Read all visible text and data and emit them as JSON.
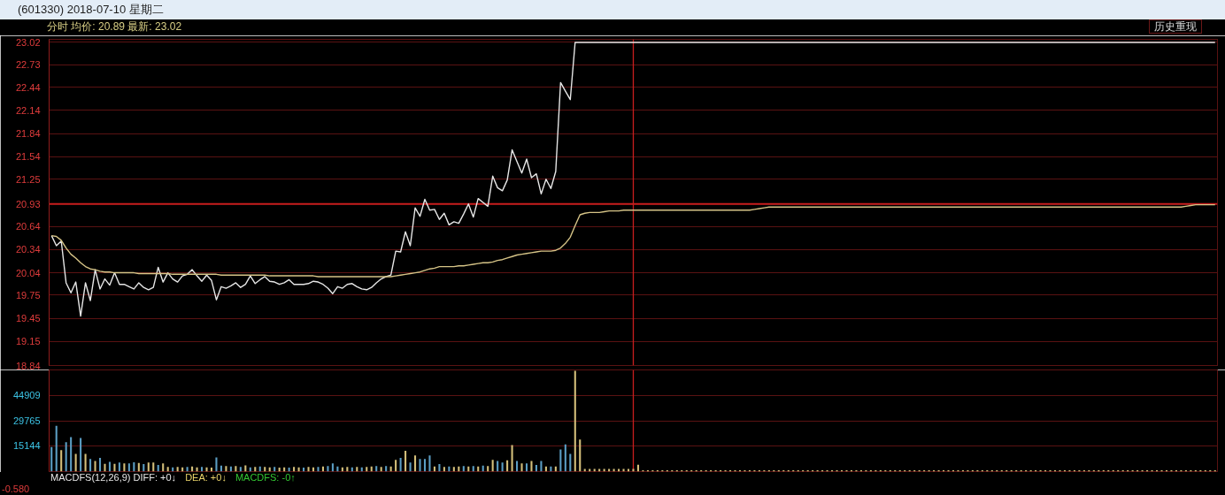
{
  "chart_data": [
    {
      "type": "line",
      "title": "(601330) 2018-07-10 星期二",
      "subtitle": "分时 均价: 20.89 最新: 23.02",
      "annotations": [
        "历史重现"
      ],
      "categories": [
        null,
        null,
        null,
        null,
        null,
        null,
        null,
        null,
        null,
        null,
        null,
        null,
        null,
        null,
        null,
        null,
        null,
        null,
        null,
        null,
        null,
        null,
        null,
        null,
        null,
        null,
        null,
        null,
        null,
        null,
        null,
        null,
        null,
        null,
        null,
        null,
        null,
        null,
        null,
        null,
        null,
        null,
        null,
        null,
        null,
        null,
        null,
        null,
        null,
        null,
        null,
        null,
        null,
        null,
        null,
        null,
        null,
        null,
        null,
        null,
        null,
        null,
        null,
        null,
        null,
        null,
        null,
        null,
        null,
        null,
        null,
        null,
        null,
        null,
        null,
        null,
        null,
        null,
        null,
        null,
        null,
        null,
        null,
        null,
        null,
        null,
        null,
        null,
        null,
        null,
        null,
        null,
        null,
        null,
        null,
        null,
        null,
        null,
        null,
        null,
        null,
        null,
        null,
        null,
        null,
        null,
        null,
        null,
        null,
        null,
        null,
        null,
        null,
        null,
        null,
        null,
        null,
        null,
        null,
        null,
        null,
        null,
        null,
        null,
        null,
        null,
        null,
        null,
        null,
        null,
        null,
        null,
        null,
        null,
        null,
        null,
        null,
        null,
        null,
        null,
        null,
        null,
        null,
        null,
        null,
        null,
        null,
        null,
        null,
        null,
        null,
        null,
        null,
        null,
        null,
        null,
        null,
        null,
        null,
        null,
        null,
        null,
        null,
        null,
        null,
        null,
        null,
        null,
        null,
        null,
        null,
        null,
        null,
        null,
        null,
        null,
        null,
        null,
        null,
        null,
        null,
        null,
        null,
        null,
        null,
        null,
        null,
        null,
        null,
        null,
        null,
        null,
        null,
        null,
        null,
        null,
        null,
        null,
        null,
        null,
        null,
        null,
        null,
        null,
        null,
        null,
        null,
        null,
        null,
        null,
        null,
        null,
        null,
        null,
        null,
        null,
        null,
        null,
        null,
        null,
        null,
        null,
        null,
        null,
        null,
        null,
        null,
        null,
        null,
        null,
        null,
        null,
        null,
        null,
        null,
        null,
        null,
        null,
        null,
        null,
        null
      ],
      "series": [
        {
          "color": "#e6e6e6",
          "values": [
            20.52,
            20.39,
            20.45,
            19.91,
            19.78,
            19.92,
            19.48,
            19.91,
            19.68,
            20.08,
            19.83,
            19.96,
            19.88,
            20.04,
            19.89,
            19.89,
            19.86,
            19.83,
            19.91,
            19.85,
            19.82,
            19.85,
            20.11,
            19.92,
            20.04,
            19.96,
            19.92,
            20.0,
            20.02,
            20.08,
            20.0,
            19.93,
            20.01,
            19.94,
            19.69,
            19.86,
            19.84,
            19.87,
            19.91,
            19.85,
            19.89,
            20.0,
            19.9,
            19.95,
            19.99,
            19.93,
            19.92,
            19.89,
            19.91,
            19.95,
            19.89,
            19.89,
            19.89,
            19.9,
            19.93,
            19.92,
            19.89,
            19.84,
            19.77,
            19.86,
            19.84,
            19.89,
            19.9,
            19.86,
            19.83,
            19.82,
            19.85,
            19.91,
            19.96,
            19.99,
            20.01,
            20.32,
            20.31,
            20.57,
            20.39,
            20.88,
            20.77,
            20.99,
            20.85,
            20.86,
            20.73,
            20.81,
            20.66,
            20.7,
            20.68,
            20.8,
            20.93,
            20.76,
            21.0,
            20.95,
            20.9,
            21.29,
            21.14,
            21.1,
            21.24,
            21.63,
            21.48,
            21.33,
            21.51,
            21.27,
            21.32,
            21.06,
            21.25,
            21.13,
            21.35,
            22.5,
            22.39,
            22.28,
            23.02,
            23.02,
            23.02,
            23.02,
            23.02,
            23.02,
            23.02,
            23.02,
            23.02,
            23.02,
            23.02,
            23.02,
            23.02,
            23.02,
            23.02,
            23.02,
            23.02,
            23.02,
            23.02,
            23.02,
            23.02,
            23.02,
            23.02,
            23.02,
            23.02,
            23.02,
            23.02,
            23.02,
            23.02,
            23.02,
            23.02,
            23.02,
            23.02,
            23.02,
            23.02,
            23.02,
            23.02,
            23.02,
            23.02,
            23.02,
            23.02,
            23.02,
            23.02,
            23.02,
            23.02,
            23.02,
            23.02,
            23.02,
            23.02,
            23.02,
            23.02,
            23.02,
            23.02,
            23.02,
            23.02,
            23.02,
            23.02,
            23.02,
            23.02,
            23.02,
            23.02,
            23.02,
            23.02,
            23.02,
            23.02,
            23.02,
            23.02,
            23.02,
            23.02,
            23.02,
            23.02,
            23.02,
            23.02,
            23.02,
            23.02,
            23.02,
            23.02,
            23.02,
            23.02,
            23.02,
            23.02,
            23.02,
            23.02,
            23.02,
            23.02,
            23.02,
            23.02,
            23.02,
            23.02,
            23.02,
            23.02,
            23.02,
            23.02,
            23.02,
            23.02,
            23.02,
            23.02,
            23.02,
            23.02,
            23.02,
            23.02,
            23.02,
            23.02,
            23.02,
            23.02,
            23.02,
            23.02,
            23.02,
            23.02,
            23.02,
            23.02,
            23.02,
            23.02,
            23.02,
            23.02,
            23.02,
            23.02,
            23.02,
            23.02,
            23.02,
            23.02,
            23.02,
            23.02,
            23.02,
            23.02,
            23.02,
            23.02,
            23.02,
            23.02,
            23.02,
            23.02,
            23.02,
            23.02
          ]
        },
        {
          "color": "#d6c487",
          "values": [
            20.52,
            20.51,
            20.46,
            20.36,
            20.28,
            20.23,
            20.17,
            20.12,
            20.09,
            20.08,
            20.06,
            20.05,
            20.05,
            20.04,
            20.04,
            20.04,
            20.04,
            20.04,
            20.03,
            20.03,
            20.03,
            20.03,
            20.03,
            20.03,
            20.03,
            20.02,
            20.02,
            20.02,
            20.02,
            20.02,
            20.02,
            20.02,
            20.02,
            20.02,
            20.02,
            20.01,
            20.01,
            20.01,
            20.01,
            20.01,
            20.01,
            20.01,
            20.01,
            20.01,
            20.01,
            20.0,
            20.0,
            20.0,
            20.0,
            20.0,
            20.0,
            20.0,
            20.0,
            20.0,
            20.0,
            19.99,
            19.99,
            19.99,
            19.99,
            19.99,
            19.99,
            19.99,
            19.99,
            19.99,
            19.99,
            19.99,
            19.99,
            19.99,
            19.99,
            19.99,
            19.99,
            20.0,
            20.01,
            20.02,
            20.03,
            20.04,
            20.05,
            20.07,
            20.09,
            20.1,
            20.12,
            20.12,
            20.12,
            20.12,
            20.13,
            20.13,
            20.14,
            20.15,
            20.16,
            20.17,
            20.17,
            20.18,
            20.2,
            20.21,
            20.23,
            20.25,
            20.27,
            20.28,
            20.29,
            20.3,
            20.31,
            20.32,
            20.32,
            20.32,
            20.33,
            20.36,
            20.42,
            20.5,
            20.65,
            20.79,
            20.81,
            20.82,
            20.82,
            20.82,
            20.83,
            20.84,
            20.84,
            20.84,
            20.85,
            20.85,
            20.85,
            20.85,
            20.85,
            20.85,
            20.85,
            20.85,
            20.85,
            20.85,
            20.85,
            20.85,
            20.85,
            20.85,
            20.85,
            20.85,
            20.85,
            20.85,
            20.85,
            20.85,
            20.85,
            20.85,
            20.85,
            20.85,
            20.85,
            20.85,
            20.85,
            20.86,
            20.87,
            20.88,
            20.89,
            20.89,
            20.89,
            20.89,
            20.89,
            20.89,
            20.89,
            20.89,
            20.89,
            20.89,
            20.89,
            20.89,
            20.89,
            20.89,
            20.89,
            20.89,
            20.89,
            20.89,
            20.89,
            20.89,
            20.89,
            20.89,
            20.89,
            20.89,
            20.89,
            20.89,
            20.89,
            20.89,
            20.89,
            20.89,
            20.89,
            20.89,
            20.89,
            20.89,
            20.89,
            20.89,
            20.89,
            20.89,
            20.89,
            20.89,
            20.89,
            20.89,
            20.89,
            20.89,
            20.89,
            20.89,
            20.89,
            20.89,
            20.89,
            20.89,
            20.89,
            20.89,
            20.89,
            20.89,
            20.89,
            20.89,
            20.89,
            20.89,
            20.89,
            20.89,
            20.89,
            20.89,
            20.89,
            20.89,
            20.89,
            20.89,
            20.89,
            20.89,
            20.89,
            20.89,
            20.89,
            20.89,
            20.89,
            20.89,
            20.89,
            20.89,
            20.89,
            20.89,
            20.89,
            20.89,
            20.89,
            20.89,
            20.89,
            20.89,
            20.89,
            20.89,
            20.9,
            20.91,
            20.92,
            20.92,
            20.92,
            20.92,
            20.92
          ]
        }
      ],
      "ylim": [
        18.84,
        23.06
      ],
      "yticks": [
        23.02,
        22.73,
        22.44,
        22.14,
        21.84,
        21.54,
        21.25,
        20.93,
        20.64,
        20.34,
        20.04,
        19.75,
        19.45,
        19.15,
        18.84
      ],
      "grid": "y",
      "tick_labels": "y",
      "ref_lines": [
        {
          "axis": "y",
          "value": 20.93,
          "color": "#c81e1e"
        }
      ]
    },
    {
      "type": "bar",
      "annotations": [
        "MACDFS(12,26,9) DIFF: +0↓",
        "DEA: +0↓",
        "MACDFS: -0↑",
        "-0.580"
      ],
      "categories": [
        null,
        null,
        null,
        null,
        null,
        null,
        null,
        null,
        null,
        null,
        null,
        null,
        null,
        null,
        null,
        null,
        null,
        null,
        null,
        null,
        null,
        null,
        null,
        null,
        null,
        null,
        null,
        null,
        null,
        null,
        null,
        null,
        null,
        null,
        null,
        null,
        null,
        null,
        null,
        null,
        null,
        null,
        null,
        null,
        null,
        null,
        null,
        null,
        null,
        null,
        null,
        null,
        null,
        null,
        null,
        null,
        null,
        null,
        null,
        null,
        null,
        null,
        null,
        null,
        null,
        null,
        null,
        null,
        null,
        null,
        null,
        null,
        null,
        null,
        null,
        null,
        null,
        null,
        null,
        null,
        null,
        null,
        null,
        null,
        null,
        null,
        null,
        null,
        null,
        null,
        null,
        null,
        null,
        null,
        null,
        null,
        null,
        null,
        null,
        null,
        null,
        null,
        null,
        null,
        null,
        null,
        null,
        null,
        null,
        null,
        null,
        null,
        null,
        null,
        null,
        null,
        null,
        null,
        null,
        null,
        null,
        null,
        null,
        null,
        null,
        null,
        null,
        null,
        null,
        null,
        null,
        null,
        null,
        null,
        null,
        null,
        null,
        null,
        null,
        null,
        null,
        null,
        null,
        null,
        null,
        null,
        null,
        null,
        null,
        null,
        null,
        null,
        null,
        null,
        null,
        null,
        null,
        null,
        null,
        null,
        null,
        null,
        null,
        null,
        null,
        null,
        null,
        null,
        null,
        null,
        null,
        null,
        null,
        null,
        null,
        null,
        null,
        null,
        null,
        null,
        null,
        null,
        null,
        null,
        null,
        null,
        null,
        null,
        null,
        null,
        null,
        null,
        null,
        null,
        null,
        null,
        null,
        null,
        null,
        null,
        null,
        null,
        null,
        null,
        null,
        null,
        null,
        null,
        null,
        null,
        null,
        null,
        null,
        null,
        null,
        null,
        null,
        null,
        null,
        null,
        null,
        null,
        null,
        null,
        null,
        null,
        null,
        null,
        null,
        null,
        null,
        null,
        null,
        null,
        null,
        null,
        null,
        null,
        null,
        null,
        null
      ],
      "values": [
        14500,
        27000,
        12700,
        17300,
        20300,
        10400,
        19800,
        10400,
        7400,
        6200,
        8100,
        4600,
        5800,
        4600,
        5300,
        4800,
        4800,
        5500,
        5100,
        4400,
        5300,
        5300,
        3900,
        4800,
        2800,
        2500,
        2800,
        2500,
        2800,
        3000,
        2500,
        2800,
        2500,
        2300,
        8300,
        3500,
        3300,
        3000,
        3300,
        2800,
        3700,
        2500,
        2800,
        3000,
        2800,
        2500,
        2800,
        2300,
        2500,
        2300,
        2800,
        2500,
        2300,
        2800,
        2500,
        2800,
        3000,
        3300,
        4800,
        3000,
        2500,
        2800,
        2500,
        2800,
        2500,
        2800,
        3000,
        3300,
        2800,
        3300,
        3000,
        6900,
        8100,
        12200,
        5300,
        9500,
        7400,
        7400,
        9500,
        3000,
        4400,
        2800,
        3000,
        2800,
        3000,
        3300,
        3000,
        3300,
        3000,
        3500,
        3300,
        6900,
        6200,
        5300,
        6700,
        15700,
        6200,
        4800,
        4800,
        6200,
        3900,
        6200,
        3000,
        3000,
        3000,
        13100,
        16100,
        10400,
        59500,
        18900,
        1600,
        1600,
        1600,
        1600,
        1600,
        1600,
        1600,
        1600,
        1600,
        1600,
        1600,
        4000,
        800,
        800,
        800,
        800,
        800,
        800,
        800,
        800,
        800,
        800,
        800,
        800,
        800,
        800,
        800,
        800,
        800,
        800,
        800,
        800,
        800,
        800,
        800,
        800,
        800,
        800,
        800,
        800,
        800,
        800,
        800,
        800,
        800,
        800,
        800,
        800,
        800,
        800,
        800,
        800,
        800,
        800,
        800,
        800,
        800,
        800,
        800,
        800,
        800,
        800,
        800,
        800,
        800,
        800,
        800,
        800,
        800,
        800,
        800,
        800,
        800,
        800,
        800,
        800,
        800,
        800,
        800,
        800,
        800,
        800,
        800,
        800,
        800,
        800,
        800,
        800,
        800,
        800,
        800,
        800,
        800,
        800,
        800,
        800,
        800,
        800,
        800,
        800,
        800,
        800,
        800,
        800,
        800,
        800,
        800,
        800,
        800,
        800,
        800,
        800,
        800,
        800,
        800,
        800,
        800,
        800,
        800,
        800,
        800,
        800,
        800,
        800,
        800,
        800,
        800,
        800,
        800,
        800,
        800
      ],
      "colors": [
        "#5b9ec4",
        "#5b9ec4",
        "#d4bf7a",
        "#5b9ec4",
        "#5b9ec4",
        "#d4bf7a",
        "#5b9ec4",
        "#d4bf7a",
        "#5b9ec4",
        "#d4bf7a",
        "#5b9ec4",
        "#d4bf7a",
        "#5b9ec4",
        "#d4bf7a",
        "#5b9ec4",
        "#d4bf7a",
        "#5b9ec4",
        "#5b9ec4",
        "#d4bf7a",
        "#5b9ec4",
        "#d4bf7a",
        "#d4bf7a",
        "#5b9ec4",
        "#d4bf7a",
        "#d4bf7a",
        "#5b9ec4",
        "#d4bf7a",
        "#d4bf7a",
        "#5b9ec4",
        "#d4bf7a",
        "#d4bf7a",
        "#5b9ec4",
        "#d4bf7a",
        "#d4bf7a",
        "#5b9ec4",
        "#5b9ec4",
        "#d4bf7a",
        "#5b9ec4",
        "#d4bf7a",
        "#5b9ec4",
        "#d4bf7a",
        "#5b9ec4",
        "#d4bf7a",
        "#5b9ec4",
        "#d4bf7a",
        "#d4bf7a",
        "#5b9ec4",
        "#d4bf7a",
        "#d4bf7a",
        "#5b9ec4",
        "#d4bf7a",
        "#d4bf7a",
        "#5b9ec4",
        "#d4bf7a",
        "#d4bf7a",
        "#5b9ec4",
        "#d4bf7a",
        "#5b9ec4",
        "#5b9ec4",
        "#5b9ec4",
        "#d4bf7a",
        "#d4bf7a",
        "#5b9ec4",
        "#d4bf7a",
        "#5b9ec4",
        "#d4bf7a",
        "#d4bf7a",
        "#5b9ec4",
        "#d4bf7a",
        "#5b9ec4",
        "#d4bf7a",
        "#d4bf7a",
        "#5b9ec4",
        "#d4bf7a",
        "#5b9ec4",
        "#d4bf7a",
        "#5b9ec4",
        "#5b9ec4",
        "#5b9ec4",
        "#d4bf7a",
        "#5b9ec4",
        "#d4bf7a",
        "#5b9ec4",
        "#d4bf7a",
        "#d4bf7a",
        "#5b9ec4",
        "#d4bf7a",
        "#5b9ec4",
        "#d4bf7a",
        "#5b9ec4",
        "#d4bf7a",
        "#d4bf7a",
        "#5b9ec4",
        "#5b9ec4",
        "#d4bf7a",
        "#d4bf7a",
        "#5b9ec4",
        "#d4bf7a",
        "#5b9ec4",
        "#d4bf7a",
        "#5b9ec4",
        "#5b9ec4",
        "#d4bf7a",
        "#5b9ec4",
        "#d4bf7a",
        "#5b9ec4",
        "#5b9ec4",
        "#5b9ec4",
        "#d4bf7a",
        "#d4bf7a",
        "#d4bf7a",
        "#d4bf7a",
        "#d4bf7a",
        "#d4bf7a",
        "#d4bf7a",
        "#d4bf7a",
        "#d4bf7a",
        "#d4bf7a",
        "#d4bf7a",
        "#d4bf7a",
        "#d4bf7a",
        "#d4bf7a",
        "#d4bf7a",
        "#d4bf7a",
        "#d4bf7a",
        "#d4bf7a",
        "#d4bf7a",
        "#d4bf7a",
        "#d4bf7a",
        "#d4bf7a",
        "#d4bf7a",
        "#d4bf7a",
        "#d4bf7a",
        "#d4bf7a",
        "#d4bf7a",
        "#d4bf7a",
        "#d4bf7a",
        "#d4bf7a",
        "#d4bf7a",
        "#d4bf7a",
        "#d4bf7a",
        "#d4bf7a",
        "#d4bf7a",
        "#d4bf7a",
        "#d4bf7a",
        "#d4bf7a",
        "#d4bf7a",
        "#d4bf7a",
        "#d4bf7a",
        "#d4bf7a",
        "#d4bf7a",
        "#d4bf7a",
        "#d4bf7a",
        "#d4bf7a",
        "#d4bf7a",
        "#d4bf7a",
        "#d4bf7a",
        "#d4bf7a",
        "#d4bf7a",
        "#d4bf7a",
        "#d4bf7a",
        "#d4bf7a",
        "#d4bf7a",
        "#d4bf7a",
        "#d4bf7a",
        "#d4bf7a",
        "#d4bf7a",
        "#d4bf7a",
        "#d4bf7a",
        "#d4bf7a",
        "#d4bf7a",
        "#d4bf7a",
        "#d4bf7a",
        "#d4bf7a",
        "#d4bf7a",
        "#d4bf7a",
        "#d4bf7a",
        "#d4bf7a",
        "#d4bf7a",
        "#d4bf7a",
        "#d4bf7a",
        "#d4bf7a",
        "#d4bf7a",
        "#d4bf7a",
        "#d4bf7a",
        "#d4bf7a",
        "#d4bf7a",
        "#d4bf7a",
        "#d4bf7a",
        "#d4bf7a",
        "#d4bf7a",
        "#d4bf7a",
        "#d4bf7a",
        "#d4bf7a",
        "#d4bf7a",
        "#d4bf7a",
        "#d4bf7a",
        "#d4bf7a",
        "#d4bf7a",
        "#d4bf7a",
        "#d4bf7a",
        "#d4bf7a",
        "#d4bf7a",
        "#d4bf7a",
        "#d4bf7a",
        "#d4bf7a",
        "#d4bf7a",
        "#d4bf7a",
        "#d4bf7a",
        "#d4bf7a",
        "#d4bf7a",
        "#d4bf7a",
        "#d4bf7a",
        "#d4bf7a",
        "#d4bf7a",
        "#d4bf7a",
        "#d4bf7a",
        "#d4bf7a",
        "#d4bf7a",
        "#d4bf7a",
        "#d4bf7a",
        "#d4bf7a",
        "#d4bf7a",
        "#d4bf7a",
        "#d4bf7a",
        "#d4bf7a",
        "#d4bf7a",
        "#d4bf7a",
        "#d4bf7a",
        "#d4bf7a",
        "#d4bf7a",
        "#d4bf7a",
        "#d4bf7a",
        "#d4bf7a",
        "#d4bf7a",
        "#d4bf7a",
        "#d4bf7a",
        "#d4bf7a",
        "#d4bf7a",
        "#d4bf7a",
        "#d4bf7a"
      ],
      "ylim": [
        0,
        60000
      ],
      "yticks": [
        15144,
        29765,
        44909
      ],
      "grid": "y",
      "tick_labels": "y"
    }
  ]
}
